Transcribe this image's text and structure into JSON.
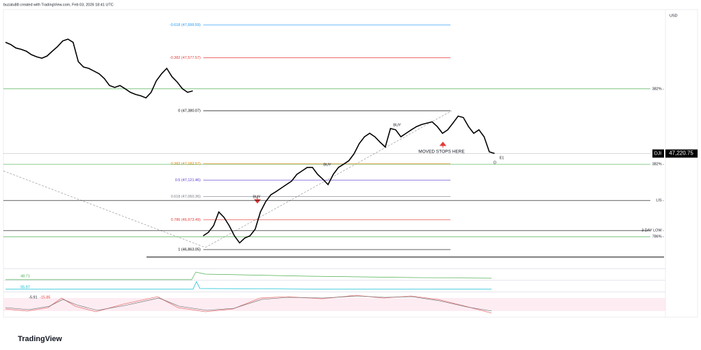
{
  "header": {
    "attribution": "buzatu88 created with TradingView.com, Feb 03, 2026 18:41 UTC",
    "currency": "USD",
    "logo": "TradingView"
  },
  "chart_data": {
    "type": "line",
    "color": "#000000",
    "ylim": [
      46825,
      47757
    ],
    "values": [
      47635,
      47627,
      47614,
      47609,
      47602,
      47589,
      47581,
      47576,
      47584,
      47602,
      47619,
      47640,
      47647,
      47635,
      47563,
      47543,
      47538,
      47528,
      47518,
      47500,
      47474,
      47467,
      47474,
      47462,
      47449,
      47441,
      47436,
      47428,
      47449,
      47492,
      47518,
      47538,
      47507,
      47487,
      47462,
      47449,
      47454,
      null,
      46914,
      46927,
      46952,
      47003,
      46983,
      46952,
      46914,
      46888,
      46906,
      46914,
      46939,
      47003,
      47041,
      47067,
      47079,
      47092,
      47105,
      47118,
      47143,
      47156,
      47169,
      47169,
      47143,
      47125,
      47105,
      47143,
      47169,
      47181,
      47194,
      47220,
      47258,
      47283,
      47296,
      47283,
      47263,
      47245,
      47314,
      47309,
      47283,
      47296,
      47309,
      47321,
      47329,
      47334,
      47339,
      47321,
      47296,
      47309,
      47334,
      47360,
      47355,
      47321,
      47296,
      47309,
      47283,
      47227,
      47221
    ],
    "fib_levels": [
      {
        "value": 47699.59,
        "label": "-0.618 (47,699.59)",
        "color": "#2196f3"
      },
      {
        "value": 47577.57,
        "label": "-0.382 (47,577.57)",
        "color": "#e53935"
      },
      {
        "value": 47380.07,
        "label": "0 (47,380.07)",
        "color": "#000000"
      },
      {
        "value": 47182.57,
        "label": "0.382 (47,182.57)",
        "color": "#f57c00"
      },
      {
        "value": 47121.46,
        "label": "0.5 (47,121.46)",
        "color": "#5c35cc"
      },
      {
        "value": 47060.36,
        "label": "0.618 (47,060.36)",
        "color": "#787b86"
      },
      {
        "value": 46973.49,
        "label": "0.786 (46,973.49)",
        "color": "#e53935"
      },
      {
        "value": 46863.05,
        "label": "1 (46,863.05)",
        "color": "#000000"
      }
    ],
    "levels": [
      {
        "value": 47462,
        "label": "382% -",
        "color": "#4caf50"
      },
      {
        "value": 47181,
        "label": "382% -",
        "color": "#4caf50"
      },
      {
        "value": 47046,
        "label": "LIS -",
        "color": "#000000"
      },
      {
        "value": 46934,
        "label": "3 DAY LOW -",
        "color": "#000000"
      },
      {
        "value": 46911,
        "label": "786% -",
        "color": "#4caf50"
      }
    ],
    "last_price": {
      "symbol": "DJI",
      "value": 47220.75,
      "label": "47,220.75"
    },
    "annotations": [
      "BUY",
      "BUY",
      "BUY",
      "MOVED STOPS HERE",
      "E1",
      "D"
    ],
    "indicators": {
      "volume_value": "48.71",
      "rsi_value": "55.97",
      "stoch_k": "-5.91",
      "stoch_d": "-15.85"
    }
  }
}
